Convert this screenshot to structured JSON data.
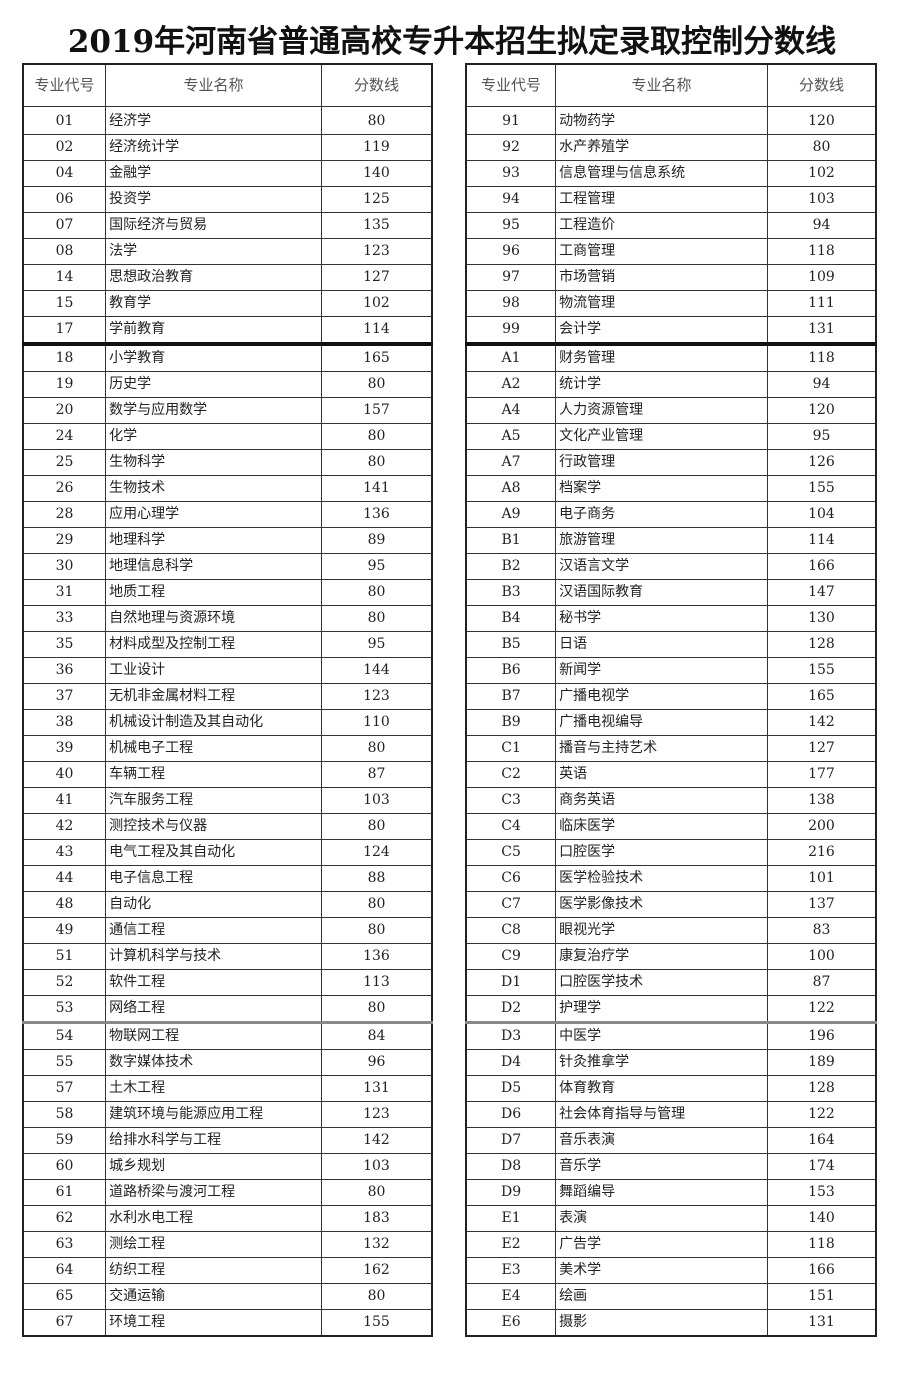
{
  "title": "2019年河南省普通高校专升本招生拟定录取控制分数线",
  "headers": [
    "专业代号",
    "专业名称",
    "分数线"
  ],
  "left_table": [
    [
      "01",
      "经济学",
      "80"
    ],
    [
      "02",
      "经济统计学",
      "119"
    ],
    [
      "04",
      "金融学",
      "140"
    ],
    [
      "06",
      "投资学",
      "125"
    ],
    [
      "07",
      "国际经济与贸易",
      "135"
    ],
    [
      "08",
      "法学",
      "123"
    ],
    [
      "14",
      "思想政治教育",
      "127"
    ],
    [
      "15",
      "教育学",
      "102"
    ],
    [
      "17",
      "学前教育",
      "114"
    ],
    [
      "18",
      "小学教育",
      "165"
    ],
    [
      "19",
      "历史学",
      "80"
    ],
    [
      "20",
      "数学与应用数学",
      "157"
    ],
    [
      "24",
      "化学",
      "80"
    ],
    [
      "25",
      "生物科学",
      "80"
    ],
    [
      "26",
      "生物技术",
      "141"
    ],
    [
      "28",
      "应用心理学",
      "136"
    ],
    [
      "29",
      "地理科学",
      "89"
    ],
    [
      "30",
      "地理信息科学",
      "95"
    ],
    [
      "31",
      "地质工程",
      "80"
    ],
    [
      "33",
      "自然地理与资源环境",
      "80"
    ],
    [
      "35",
      "材料成型及控制工程",
      "95"
    ],
    [
      "36",
      "工业设计",
      "144"
    ],
    [
      "37",
      "无机非金属材料工程",
      "123"
    ],
    [
      "38",
      "机械设计制造及其自动化",
      "110"
    ],
    [
      "39",
      "机械电子工程",
      "80"
    ],
    [
      "40",
      "车辆工程",
      "87"
    ],
    [
      "41",
      "汽车服务工程",
      "103"
    ],
    [
      "42",
      "测控技术与仪器",
      "80"
    ],
    [
      "43",
      "电气工程及其自动化",
      "124"
    ],
    [
      "44",
      "电子信息工程",
      "88"
    ],
    [
      "48",
      "自动化",
      "80"
    ],
    [
      "49",
      "通信工程",
      "80"
    ],
    [
      "51",
      "计算机科学与技术",
      "136"
    ],
    [
      "52",
      "软件工程",
      "113"
    ],
    [
      "53",
      "网络工程",
      "80"
    ],
    [
      "54",
      "物联网工程",
      "84"
    ],
    [
      "55",
      "数字媒体技术",
      "96"
    ],
    [
      "57",
      "土木工程",
      "131"
    ],
    [
      "58",
      "建筑环境与能源应用工程",
      "123"
    ],
    [
      "59",
      "给排水科学与工程",
      "142"
    ],
    [
      "60",
      "城乡规划",
      "103"
    ],
    [
      "61",
      "道路桥梁与渡河工程",
      "80"
    ],
    [
      "62",
      "水利水电工程",
      "183"
    ],
    [
      "63",
      "测绘工程",
      "132"
    ],
    [
      "64",
      "纺织工程",
      "162"
    ],
    [
      "65",
      "交通运输",
      "80"
    ],
    [
      "67",
      "环境工程",
      "155"
    ]
  ],
  "right_table": [
    [
      "91",
      "动物药学",
      "120"
    ],
    [
      "92",
      "水产养殖学",
      "80"
    ],
    [
      "93",
      "信息管理与信息系统",
      "102"
    ],
    [
      "94",
      "工程管理",
      "103"
    ],
    [
      "95",
      "工程造价",
      "94"
    ],
    [
      "96",
      "工商管理",
      "118"
    ],
    [
      "97",
      "市场营销",
      "109"
    ],
    [
      "98",
      "物流管理",
      "111"
    ],
    [
      "99",
      "会计学",
      "131"
    ],
    [
      "A1",
      "财务管理",
      "118"
    ],
    [
      "A2",
      "统计学",
      "94"
    ],
    [
      "A4",
      "人力资源管理",
      "120"
    ],
    [
      "A5",
      "文化产业管理",
      "95"
    ],
    [
      "A7",
      "行政管理",
      "126"
    ],
    [
      "A8",
      "档案学",
      "155"
    ],
    [
      "A9",
      "电子商务",
      "104"
    ],
    [
      "B1",
      "旅游管理",
      "114"
    ],
    [
      "B2",
      "汉语言文学",
      "166"
    ],
    [
      "B3",
      "汉语国际教育",
      "147"
    ],
    [
      "B4",
      "秘书学",
      "130"
    ],
    [
      "B5",
      "日语",
      "128"
    ],
    [
      "B6",
      "新闻学",
      "155"
    ],
    [
      "B7",
      "广播电视学",
      "165"
    ],
    [
      "B9",
      "广播电视编导",
      "142"
    ],
    [
      "C1",
      "播音与主持艺术",
      "127"
    ],
    [
      "C2",
      "英语",
      "177"
    ],
    [
      "C3",
      "商务英语",
      "138"
    ],
    [
      "C4",
      "临床医学",
      "200"
    ],
    [
      "C5",
      "口腔医学",
      "216"
    ],
    [
      "C6",
      "医学检验技术",
      "101"
    ],
    [
      "C7",
      "医学影像技术",
      "137"
    ],
    [
      "C8",
      "眼视光学",
      "83"
    ],
    [
      "C9",
      "康复治疗学",
      "100"
    ],
    [
      "D1",
      "口腔医学技术",
      "87"
    ],
    [
      "D2",
      "护理学",
      "122"
    ],
    [
      "D3",
      "中医学",
      "196"
    ],
    [
      "D4",
      "针灸推拿学",
      "189"
    ],
    [
      "D5",
      "体育教育",
      "128"
    ],
    [
      "D6",
      "社会体育指导与管理",
      "122"
    ],
    [
      "D7",
      "音乐表演",
      "164"
    ],
    [
      "D8",
      "音乐学",
      "174"
    ],
    [
      "D9",
      "舞蹈编导",
      "153"
    ],
    [
      "E1",
      "表演",
      "140"
    ],
    [
      "E2",
      "广告学",
      "118"
    ],
    [
      "E3",
      "美术学",
      "166"
    ],
    [
      "E4",
      "绘画",
      "151"
    ],
    [
      "E6",
      "摄影",
      "131"
    ]
  ]
}
